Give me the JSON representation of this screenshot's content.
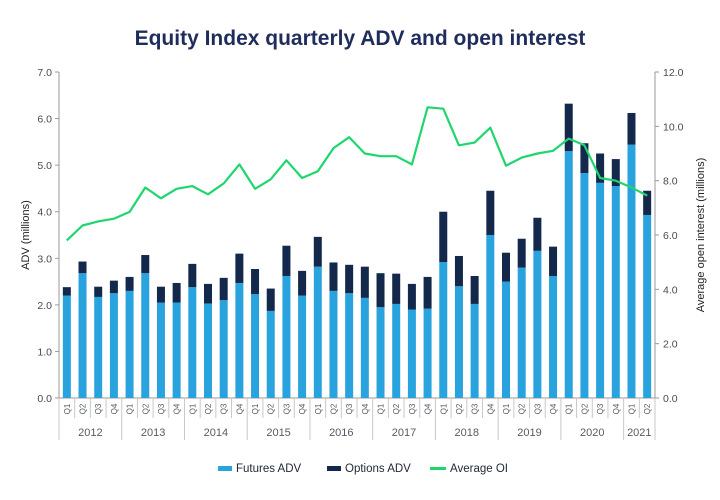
{
  "chart_data": {
    "type": "bar",
    "subtype": "stacked-bar-with-line",
    "title": "Equity Index quarterly ADV and open interest",
    "ylabel": "ADV (millions)",
    "y2label": "Average open interest (millions)",
    "ylim": [
      0,
      7
    ],
    "y2lim": [
      0,
      12
    ],
    "yticks": [
      "0.0",
      "1.0",
      "2.0",
      "3.0",
      "4.0",
      "5.0",
      "6.0",
      "7.0"
    ],
    "y2ticks": [
      "0.0",
      "2.0",
      "4.0",
      "6.0",
      "8.0",
      "10.0",
      "12.0"
    ],
    "grid": false,
    "legend_position": "bottom",
    "years": [
      "2012",
      "2013",
      "2014",
      "2015",
      "2016",
      "2017",
      "2018",
      "2019",
      "2020",
      "2021"
    ],
    "quarters_per_year": [
      4,
      4,
      4,
      4,
      4,
      4,
      4,
      4,
      4,
      2
    ],
    "categories": [
      "Q1",
      "Q2",
      "Q3",
      "Q4",
      "Q1",
      "Q2",
      "Q3",
      "Q4",
      "Q1",
      "Q2",
      "Q3",
      "Q4",
      "Q1",
      "Q2",
      "Q3",
      "Q4",
      "Q1",
      "Q2",
      "Q3",
      "Q4",
      "Q1",
      "Q2",
      "Q3",
      "Q4",
      "Q1",
      "Q2",
      "Q3",
      "Q4",
      "Q1",
      "Q2",
      "Q3",
      "Q4",
      "Q1",
      "Q2",
      "Q3",
      "Q4",
      "Q1",
      "Q2"
    ],
    "series": [
      {
        "name": "Futures ADV",
        "type": "bar",
        "axis": "left",
        "color": "#29a3dd",
        "values": [
          2.2,
          2.68,
          2.17,
          2.25,
          2.3,
          2.68,
          2.05,
          2.05,
          2.38,
          2.03,
          2.1,
          2.47,
          2.23,
          1.87,
          2.62,
          2.2,
          2.82,
          2.3,
          2.25,
          2.15,
          1.95,
          2.02,
          1.9,
          1.92,
          2.92,
          2.4,
          2.02,
          3.5,
          2.5,
          2.8,
          3.16,
          2.62,
          5.3,
          4.83,
          4.62,
          4.55,
          5.44,
          3.93
        ]
      },
      {
        "name": "Options ADV",
        "type": "bar",
        "axis": "left",
        "color": "#13284b",
        "values": [
          0.18,
          0.25,
          0.22,
          0.27,
          0.3,
          0.39,
          0.34,
          0.42,
          0.5,
          0.42,
          0.48,
          0.63,
          0.54,
          0.48,
          0.65,
          0.53,
          0.64,
          0.61,
          0.61,
          0.67,
          0.73,
          0.65,
          0.55,
          0.68,
          1.08,
          0.65,
          0.6,
          0.95,
          0.62,
          0.62,
          0.71,
          0.63,
          1.02,
          0.64,
          0.63,
          0.58,
          0.68,
          0.52
        ]
      },
      {
        "name": "Average OI",
        "type": "line",
        "axis": "right",
        "color": "#1fd66e",
        "values": [
          5.8,
          6.35,
          6.5,
          6.6,
          6.85,
          7.75,
          7.35,
          7.7,
          7.8,
          7.5,
          7.9,
          8.6,
          7.7,
          8.05,
          8.75,
          8.1,
          8.35,
          9.2,
          9.6,
          9.0,
          8.9,
          8.9,
          8.6,
          10.7,
          10.65,
          9.3,
          9.4,
          9.95,
          8.55,
          8.85,
          9.0,
          9.1,
          9.55,
          9.3,
          8.1,
          8.0,
          7.75,
          7.45
        ]
      }
    ]
  }
}
